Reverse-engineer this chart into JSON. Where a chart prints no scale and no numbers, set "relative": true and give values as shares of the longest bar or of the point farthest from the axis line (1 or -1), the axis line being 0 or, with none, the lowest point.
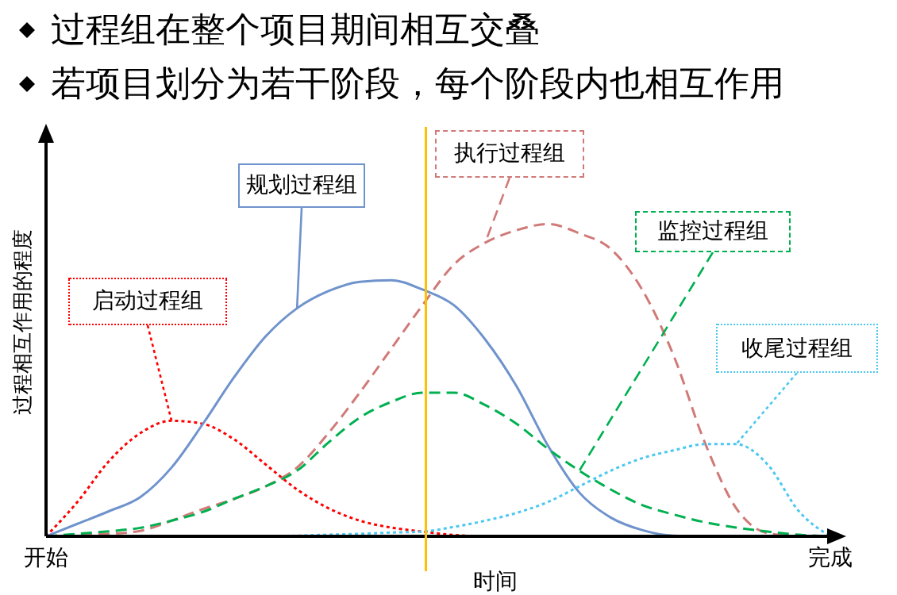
{
  "chart_data": {
    "type": "line",
    "title": "过程组在整个项目期间相互交叠",
    "subtitle": "若项目划分为若干阶段，每个阶段内也相互作用",
    "xlabel": "时间",
    "ylabel": "过程相互作用的程度",
    "relative": true,
    "categories": [
      "开始",
      null,
      null,
      null,
      null,
      null,
      null,
      null,
      null,
      null,
      null,
      null,
      null,
      null,
      null,
      null,
      null,
      null,
      null,
      null,
      null,
      null,
      null,
      null,
      null,
      "完成"
    ],
    "legend": false,
    "grid": false,
    "marker": "none",
    "series": [
      {
        "name": "启动过程组",
        "color": "#ff0000",
        "line_style": "dotted",
        "values": [
          0,
          0.11,
          0.24,
          0.33,
          0.37,
          0.36,
          0.31,
          0.23,
          0.15,
          0.09,
          0.05,
          0.028,
          0.015,
          0.004,
          0,
          null,
          null,
          null,
          null,
          null,
          null,
          null,
          null,
          null,
          null,
          null
        ]
      },
      {
        "name": "规划过程组",
        "color": "#6f93cc",
        "line_style": "solid",
        "values": [
          0,
          0.04,
          0.08,
          0.125,
          0.22,
          0.36,
          0.51,
          0.64,
          0.73,
          0.785,
          0.815,
          0.82,
          0.79,
          0.74,
          0.63,
          0.48,
          0.29,
          0.14,
          0.06,
          0.02,
          0.002,
          0,
          null,
          null,
          null,
          null
        ]
      },
      {
        "name": "执行过程组",
        "color": "#d07a78",
        "line_style": "dashed",
        "values": [
          0,
          0.004,
          0.008,
          0.017,
          0.05,
          0.087,
          0.12,
          0.16,
          0.22,
          0.33,
          0.46,
          0.6,
          0.74,
          0.87,
          0.94,
          0.98,
          1,
          0.97,
          0.92,
          0.79,
          0.58,
          0.3,
          0.09,
          0.01,
          0,
          null
        ]
      },
      {
        "name": "监控过程组",
        "color": "#00b050",
        "line_style": "dashed",
        "values": [
          0,
          0.008,
          0.016,
          0.027,
          0.05,
          0.078,
          0.12,
          0.16,
          0.21,
          0.3,
          0.38,
          0.43,
          0.46,
          0.46,
          0.42,
          0.36,
          0.28,
          0.21,
          0.15,
          0.1,
          0.07,
          0.045,
          0.028,
          0.015,
          0.005,
          0
        ]
      },
      {
        "name": "收尾过程组",
        "color": "#4bc8f0",
        "line_style": "dotted",
        "values": [
          null,
          null,
          null,
          null,
          null,
          null,
          0,
          0,
          0.002,
          0.005,
          0.008,
          0.012,
          0.015,
          0.03,
          0.05,
          0.075,
          0.11,
          0.16,
          0.21,
          0.25,
          0.275,
          0.295,
          0.295,
          0.23,
          0.08,
          0
        ]
      }
    ]
  }
}
